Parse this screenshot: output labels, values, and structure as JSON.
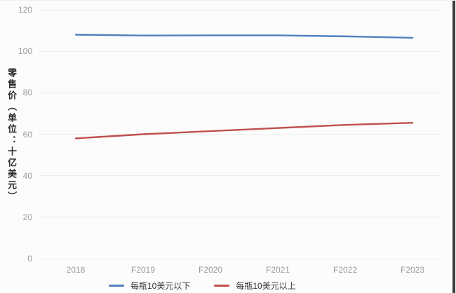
{
  "chart_data": {
    "type": "line",
    "title": "",
    "categories": [
      "2018",
      "F2019",
      "F2020",
      "F2021",
      "F2022",
      "F2023"
    ],
    "series": [
      {
        "name": "每瓶10美元以下",
        "color": "#4f81bd",
        "values": [
          108,
          107.6,
          107.7,
          107.7,
          107.2,
          106.5
        ]
      },
      {
        "name": "每瓶10美元以上",
        "color": "#c0504d",
        "values": [
          58,
          60,
          61.5,
          63,
          64.5,
          65.5
        ]
      }
    ],
    "xlabel": "",
    "ylabel": "零售价（单位：十亿美元）",
    "ylim": [
      0,
      120
    ],
    "yticks": [
      120,
      100,
      80,
      60,
      40,
      20,
      0
    ],
    "grid": true,
    "legend_position": "bottom"
  },
  "style": {
    "line_blue": "#4f81bd",
    "line_red": "#c0504d",
    "grid_color": "#ededed",
    "tick_color": "#9a9a9a",
    "axis_title_color": "#2b2b2b",
    "background": "#fcfcfc",
    "frame_border_color": "#3e3e3e"
  }
}
